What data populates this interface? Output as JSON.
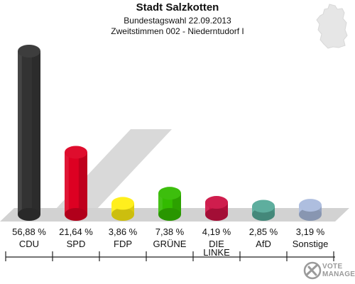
{
  "title": "Stadt Salzkotten",
  "subtitle": "Bundestagswahl 22.09.2013",
  "subtitle2": "Zweitstimmen 002 - Niederntudorf I",
  "watermark": {
    "line1": "VOTE",
    "line2": "MANAGER"
  },
  "chart_data": {
    "type": "bar",
    "categories": [
      "CDU",
      "SPD",
      "FDP",
      "GRÜNE",
      "DIE LINKE",
      "AfD",
      "Sonstige"
    ],
    "category_lines": [
      [
        "CDU"
      ],
      [
        "SPD"
      ],
      [
        "FDP"
      ],
      [
        "GRÜNE"
      ],
      [
        "DIE",
        "LINKE"
      ],
      [
        "AfD"
      ],
      [
        "Sonstige"
      ]
    ],
    "values": [
      56.88,
      21.64,
      3.86,
      7.38,
      4.19,
      2.85,
      3.19
    ],
    "value_labels": [
      "56,88 %",
      "21,64 %",
      "3,86 %",
      "7,38 %",
      "4,19 %",
      "2,85 %",
      "3,19 %"
    ],
    "colors": [
      "#333333",
      "#dd0022",
      "#ffee11",
      "#33bb00",
      "#cc1144",
      "#55aa99",
      "#aabbdd"
    ],
    "ylim": [
      0,
      60
    ],
    "grid": false,
    "legend": "none"
  }
}
